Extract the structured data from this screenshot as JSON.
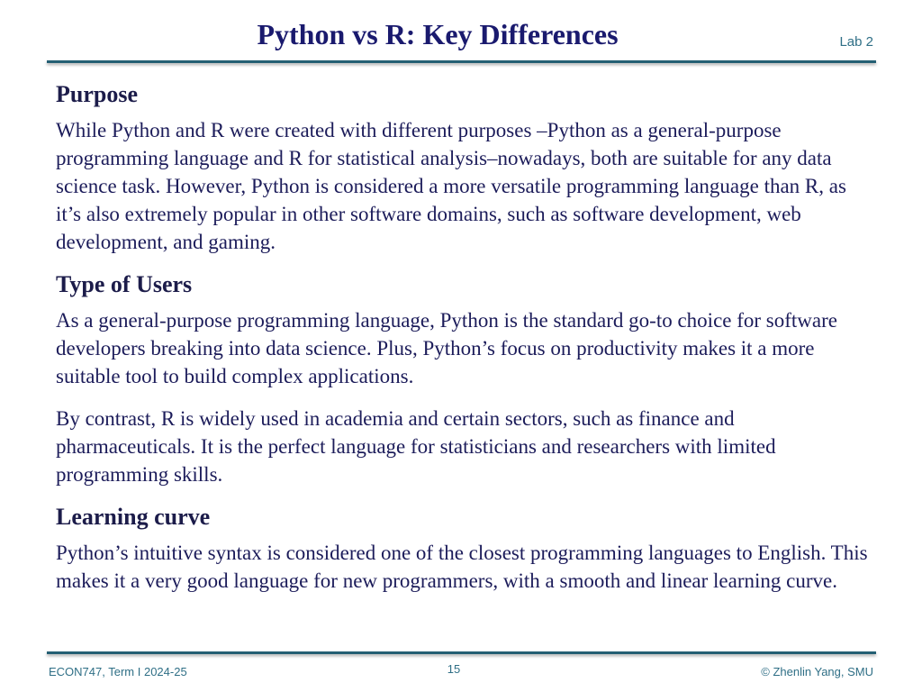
{
  "slide": {
    "title": "Python vs R: Key Differences",
    "tag": "Lab 2"
  },
  "sections": [
    {
      "heading": "Purpose",
      "paragraphs": [
        "While Python and R were created with different purposes –Python as a general-purpose programming language and R for statistical analysis–nowadays, both are suitable for any data science task. However, Python is considered a more versatile programming language than R, as it’s also extremely popular in other software domains, such as software development, web development, and gaming."
      ]
    },
    {
      "heading": "Type of Users",
      "paragraphs": [
        "As a general-purpose programming language, Python is the standard go-to choice for software developers breaking into data science. Plus, Python’s focus on productivity makes it a more suitable tool to build complex applications.",
        "By contrast, R is widely used in academia and certain sectors, such as finance and pharmaceuticals. It is the perfect language for statisticians and researchers with limited programming skills."
      ]
    },
    {
      "heading": "Learning curve",
      "paragraphs": [
        "Python’s intuitive syntax is considered one of the closest programming languages to English. This makes it a very good language for new programmers, with a smooth and linear learning curve."
      ]
    }
  ],
  "footer": {
    "course": "ECON747, Term I  2024-25",
    "page_number": "15",
    "copyright": "© Zhenlin Yang, SMU"
  },
  "colors": {
    "title": "#1a1a6e",
    "rule": "#245f73",
    "footer_text": "#2f6f86",
    "body_text": "#1c1c5a"
  }
}
